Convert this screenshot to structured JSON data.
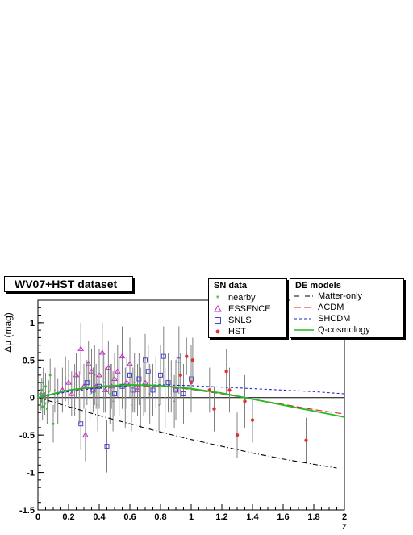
{
  "title": "WV07+HST dataset",
  "chart_data": {
    "type": "scatter",
    "xlabel": "z",
    "ylabel": "Δμ (mag)",
    "xlim": [
      0,
      2
    ],
    "ylim": [
      -1.5,
      1.3
    ],
    "x_ticks": [
      "0",
      "0.2",
      "0.4",
      "0.6",
      "0.8",
      "1",
      "1.2",
      "1.4",
      "1.6",
      "1.8",
      "2"
    ],
    "y_ticks": [
      "-1.5",
      "-1",
      "-0.5",
      "0",
      "0.5",
      "1"
    ],
    "x_tick_values": [
      0,
      0.2,
      0.4,
      0.6,
      0.8,
      1,
      1.2,
      1.4,
      1.6,
      1.8,
      2
    ],
    "y_tick_values": [
      -1.5,
      -1,
      -0.5,
      0,
      0.5,
      1
    ],
    "grid": false,
    "legend_placement": "top-right",
    "sn_legend_title": "SN data",
    "de_legend_title": "DE models",
    "sn_series": [
      {
        "name": "nearby",
        "marker": "star",
        "color": "#33bb33",
        "points": [
          [
            0.015,
            0.05,
            0.15
          ],
          [
            0.02,
            -0.05,
            0.12
          ],
          [
            0.025,
            0.1,
            0.16
          ],
          [
            0.03,
            -0.12,
            0.18
          ],
          [
            0.035,
            0.2,
            0.2
          ],
          [
            0.04,
            0.02,
            0.14
          ],
          [
            0.045,
            -0.08,
            0.15
          ],
          [
            0.05,
            0.15,
            0.18
          ],
          [
            0.06,
            -0.15,
            0.2
          ],
          [
            0.07,
            0.08,
            0.15
          ],
          [
            0.08,
            0.3,
            0.22
          ],
          [
            0.1,
            -0.35,
            0.25
          ]
        ]
      },
      {
        "name": "ESSENCE",
        "marker": "triangle",
        "color": "#cc22cc",
        "points": [
          [
            0.16,
            0.1,
            0.3
          ],
          [
            0.2,
            0.2,
            0.3
          ],
          [
            0.22,
            0.05,
            0.3
          ],
          [
            0.25,
            0.3,
            0.3
          ],
          [
            0.28,
            0.65,
            0.35
          ],
          [
            0.3,
            0.15,
            0.3
          ],
          [
            0.31,
            -0.5,
            0.35
          ],
          [
            0.33,
            0.45,
            0.3
          ],
          [
            0.35,
            0.35,
            0.3
          ],
          [
            0.38,
            0.15,
            0.3
          ],
          [
            0.4,
            0.3,
            0.35
          ],
          [
            0.42,
            0.6,
            0.4
          ],
          [
            0.44,
            0.1,
            0.3
          ],
          [
            0.46,
            0.4,
            0.35
          ],
          [
            0.48,
            0.15,
            0.3
          ],
          [
            0.5,
            0.25,
            0.35
          ],
          [
            0.52,
            0.35,
            0.35
          ],
          [
            0.55,
            0.55,
            0.4
          ],
          [
            0.58,
            0.2,
            0.35
          ],
          [
            0.6,
            0.45,
            0.35
          ],
          [
            0.65,
            0.1,
            0.35
          ],
          [
            0.7,
            0.2,
            0.4
          ]
        ]
      },
      {
        "name": "SNLS",
        "marker": "square",
        "color": "#4444cc",
        "points": [
          [
            0.28,
            -0.35,
            0.35
          ],
          [
            0.32,
            0.2,
            0.3
          ],
          [
            0.36,
            0.1,
            0.3
          ],
          [
            0.4,
            0.15,
            0.3
          ],
          [
            0.45,
            -0.65,
            0.35
          ],
          [
            0.5,
            0.05,
            0.3
          ],
          [
            0.55,
            0.15,
            0.3
          ],
          [
            0.6,
            0.3,
            0.3
          ],
          [
            0.62,
            0.1,
            0.3
          ],
          [
            0.66,
            0.25,
            0.35
          ],
          [
            0.7,
            0.5,
            0.35
          ],
          [
            0.72,
            0.35,
            0.35
          ],
          [
            0.75,
            0.1,
            0.35
          ],
          [
            0.8,
            0.3,
            0.4
          ],
          [
            0.82,
            0.55,
            0.4
          ],
          [
            0.85,
            0.2,
            0.4
          ],
          [
            0.9,
            0.1,
            0.4
          ],
          [
            0.92,
            0.5,
            0.45
          ],
          [
            0.95,
            0.05,
            0.4
          ],
          [
            1.0,
            0.25,
            0.45
          ]
        ]
      },
      {
        "name": "HST",
        "marker": "dot",
        "color": "#dd3333",
        "points": [
          [
            0.93,
            0.3,
            0.3
          ],
          [
            0.97,
            0.55,
            0.25
          ],
          [
            1.0,
            0.2,
            0.3
          ],
          [
            1.01,
            0.5,
            0.3
          ],
          [
            1.12,
            0.1,
            0.3
          ],
          [
            1.15,
            -0.15,
            0.3
          ],
          [
            1.23,
            0.35,
            0.3
          ],
          [
            1.25,
            0.1,
            0.3
          ],
          [
            1.3,
            -0.5,
            0.3
          ],
          [
            1.35,
            -0.05,
            0.35
          ],
          [
            1.4,
            -0.3,
            0.3
          ],
          [
            1.75,
            -0.57,
            0.3
          ]
        ]
      },
      {
        "name": "",
        "marker": "none",
        "color": "#888888",
        "points": [
          [
            0.11,
            0.1,
            0.3
          ],
          [
            0.13,
            -0.05,
            0.3
          ],
          [
            0.18,
            0.25,
            0.3
          ],
          [
            0.24,
            0.1,
            0.35
          ],
          [
            0.27,
            0.0,
            0.35
          ],
          [
            0.34,
            0.05,
            0.35
          ],
          [
            0.37,
            0.3,
            0.4
          ],
          [
            0.39,
            -0.1,
            0.35
          ],
          [
            0.43,
            0.2,
            0.4
          ],
          [
            0.47,
            0.05,
            0.4
          ],
          [
            0.49,
            -0.05,
            0.4
          ],
          [
            0.53,
            0.15,
            0.4
          ],
          [
            0.57,
            0.0,
            0.4
          ],
          [
            0.61,
            -0.1,
            0.35
          ],
          [
            0.63,
            0.2,
            0.4
          ],
          [
            0.67,
            0.0,
            0.4
          ],
          [
            0.69,
            0.15,
            0.4
          ],
          [
            0.73,
            0.05,
            0.4
          ],
          [
            0.77,
            0.2,
            0.35
          ],
          [
            0.79,
            -0.1,
            0.35
          ],
          [
            0.83,
            0.0,
            0.4
          ],
          [
            0.87,
            0.15,
            0.35
          ],
          [
            0.89,
            -0.05,
            0.35
          ]
        ]
      }
    ],
    "de_models": [
      {
        "name": "Matter-only",
        "color": "#000000",
        "dash": "6,3,1,3",
        "x": [
          0,
          0.2,
          0.4,
          0.6,
          0.8,
          1.0,
          1.2,
          1.4,
          1.6,
          1.8,
          1.95
        ],
        "y": [
          0,
          -0.12,
          -0.24,
          -0.35,
          -0.46,
          -0.56,
          -0.65,
          -0.74,
          -0.82,
          -0.89,
          -0.94
        ]
      },
      {
        "name": "ΛCDM",
        "color": "#dd2222",
        "dash": "8,4",
        "x": [
          0,
          0.2,
          0.4,
          0.6,
          0.8,
          1.0,
          1.2,
          1.4,
          1.6,
          1.8,
          2.0
        ],
        "y": [
          0,
          0.09,
          0.14,
          0.16,
          0.15,
          0.11,
          0.05,
          -0.02,
          -0.09,
          -0.16,
          -0.22
        ]
      },
      {
        "name": "SHCDM",
        "color": "#2222cc",
        "dash": "3,3",
        "x": [
          0,
          0.2,
          0.4,
          0.6,
          0.8,
          1.0,
          1.2,
          1.4,
          1.6,
          1.8,
          2.0
        ],
        "y": [
          0,
          0.08,
          0.13,
          0.16,
          0.17,
          0.16,
          0.14,
          0.12,
          0.1,
          0.08,
          0.05
        ]
      },
      {
        "name": "Q-cosmology",
        "color": "#22bb22",
        "dash": "",
        "x": [
          0,
          0.2,
          0.4,
          0.6,
          0.8,
          1.0,
          1.2,
          1.4,
          1.6,
          1.8,
          2.0
        ],
        "y": [
          0,
          0.1,
          0.15,
          0.17,
          0.16,
          0.12,
          0.06,
          -0.02,
          -0.1,
          -0.18,
          -0.26
        ]
      }
    ]
  }
}
